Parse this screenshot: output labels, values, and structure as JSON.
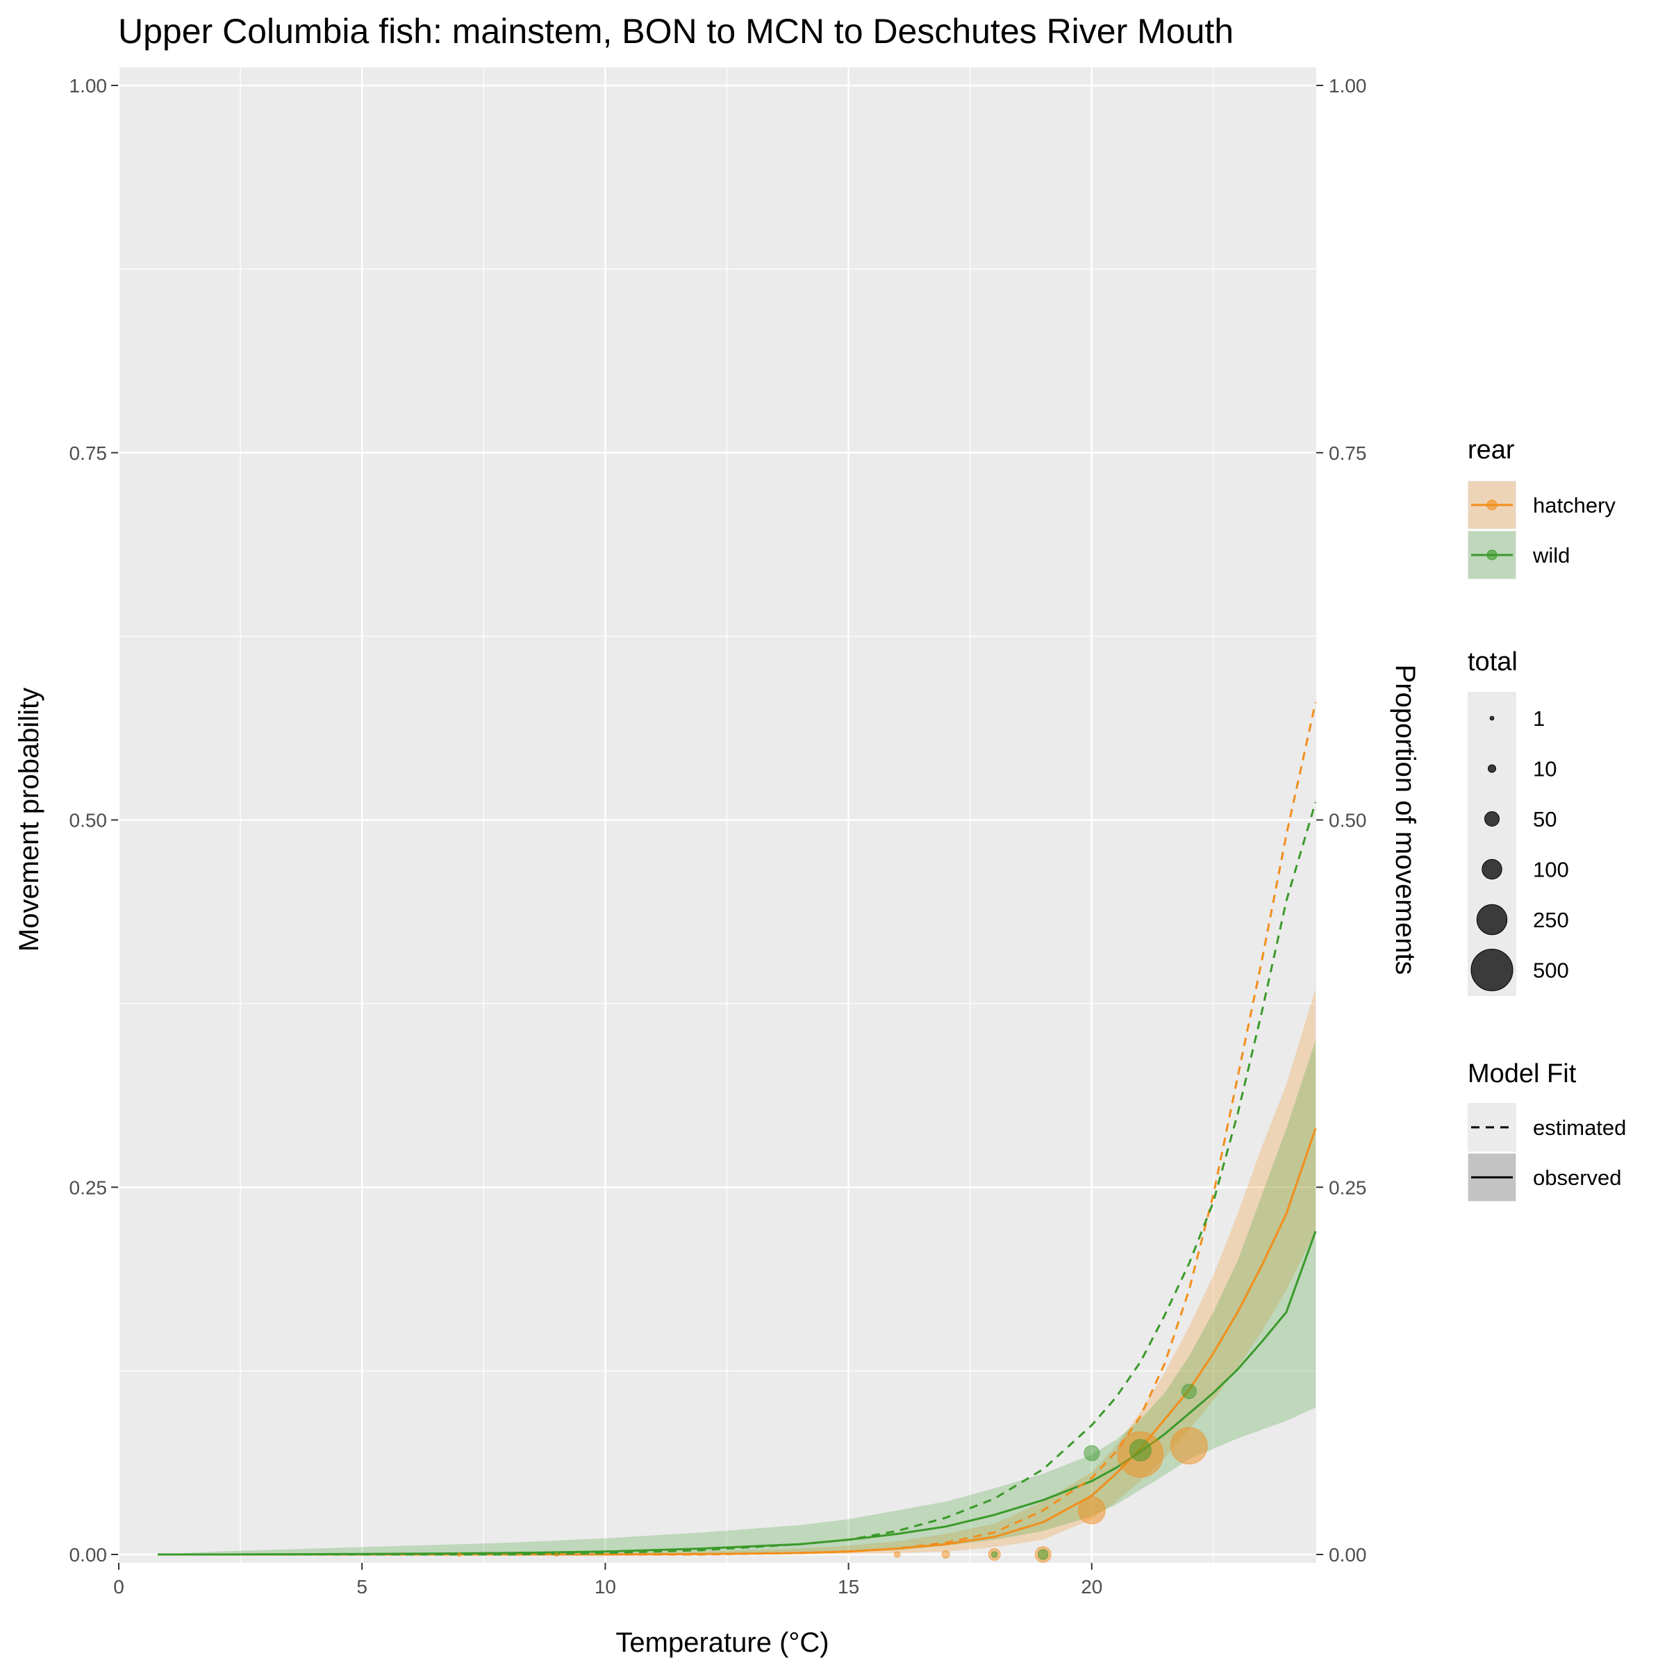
{
  "chart_data": {
    "type": "line",
    "title": "Upper Columbia fish: mainstem, BON to MCN to Deschutes River Mouth",
    "xlabel": "Temperature (°C)",
    "ylabel": "Movement probability",
    "ylabel_right": "Proportion of movements",
    "xlim": [
      0,
      24.6
    ],
    "ylim": [
      0,
      1
    ],
    "x_ticks": [
      0,
      5,
      10,
      15,
      20
    ],
    "x_tick_labels": [
      "0",
      "5",
      "10",
      "15",
      "20"
    ],
    "y_ticks": [
      0,
      0.25,
      0.5,
      0.75,
      1.0
    ],
    "y_tick_labels": [
      "0.00",
      "0.25",
      "0.50",
      "0.75",
      "1.00"
    ],
    "grid": true,
    "colors": {
      "hatchery": "#F28E1C",
      "wild": "#3A9A2A",
      "panel": "#EBEBEB",
      "grid": "#FFFFFF"
    },
    "x": [
      0.8,
      2,
      4,
      6,
      8,
      10,
      12,
      14,
      15,
      16,
      17,
      18,
      19,
      20,
      20.5,
      21,
      21.5,
      22,
      22.5,
      23,
      23.5,
      24,
      24.6
    ],
    "series": [
      {
        "name": "hatchery",
        "fit": "observed",
        "linetype": "solid",
        "values": [
          0,
          0,
          0,
          0,
          0,
          0,
          0.0003,
          0.001,
          0.002,
          0.004,
          0.007,
          0.012,
          0.022,
          0.04,
          0.055,
          0.072,
          0.092,
          0.112,
          0.137,
          0.165,
          0.197,
          0.232,
          0.29
        ],
        "lower": [
          0,
          0,
          0,
          0,
          0,
          0,
          0,
          0.0002,
          0.0005,
          0.001,
          0.002,
          0.005,
          0.01,
          0.024,
          0.036,
          0.05,
          0.066,
          0.085,
          0.105,
          0.127,
          0.152,
          0.18,
          0.22
        ],
        "upper": [
          0,
          0,
          0,
          0.0002,
          0.0005,
          0.001,
          0.002,
          0.004,
          0.006,
          0.009,
          0.014,
          0.021,
          0.036,
          0.056,
          0.074,
          0.097,
          0.124,
          0.155,
          0.19,
          0.232,
          0.278,
          0.32,
          0.385
        ]
      },
      {
        "name": "wild",
        "fit": "observed",
        "linetype": "solid",
        "values": [
          0,
          0,
          0.0002,
          0.0005,
          0.001,
          0.002,
          0.004,
          0.007,
          0.01,
          0.014,
          0.019,
          0.027,
          0.037,
          0.05,
          0.059,
          0.07,
          0.082,
          0.096,
          0.11,
          0.126,
          0.145,
          0.165,
          0.22
        ],
        "lower": [
          0,
          0,
          0,
          0,
          0,
          0,
          0,
          0.001,
          0.002,
          0.003,
          0.006,
          0.01,
          0.016,
          0.026,
          0.034,
          0.044,
          0.054,
          0.065,
          0.072,
          0.079,
          0.085,
          0.091,
          0.1
        ],
        "upper": [
          0,
          0.002,
          0.004,
          0.006,
          0.008,
          0.011,
          0.015,
          0.02,
          0.024,
          0.03,
          0.036,
          0.045,
          0.055,
          0.068,
          0.078,
          0.092,
          0.11,
          0.135,
          0.165,
          0.2,
          0.245,
          0.29,
          0.35
        ]
      },
      {
        "name": "hatchery",
        "fit": "estimated",
        "linetype": "dashed",
        "values": [
          0,
          0,
          0,
          0,
          0,
          0,
          0,
          0.001,
          0.002,
          0.004,
          0.008,
          0.015,
          0.03,
          0.052,
          0.07,
          0.094,
          0.13,
          0.18,
          0.245,
          0.325,
          0.405,
          0.49,
          0.58
        ]
      },
      {
        "name": "wild",
        "fit": "estimated",
        "linetype": "dashed",
        "values": [
          0,
          0,
          0,
          0,
          0,
          0.001,
          0.003,
          0.007,
          0.01,
          0.016,
          0.025,
          0.038,
          0.058,
          0.088,
          0.107,
          0.131,
          0.163,
          0.198,
          0.24,
          0.3,
          0.37,
          0.445,
          0.512
        ]
      }
    ],
    "points": [
      {
        "rear": "hatchery",
        "x": 7,
        "y": 0,
        "total": 1
      },
      {
        "rear": "hatchery",
        "x": 9,
        "y": 0,
        "total": 1
      },
      {
        "rear": "hatchery",
        "x": 16,
        "y": 0,
        "total": 5
      },
      {
        "rear": "hatchery",
        "x": 17,
        "y": 0,
        "total": 10
      },
      {
        "rear": "hatchery",
        "x": 18,
        "y": 0,
        "total": 30
      },
      {
        "rear": "hatchery",
        "x": 19,
        "y": 0,
        "total": 60
      },
      {
        "rear": "hatchery",
        "x": 20,
        "y": 0.03,
        "total": 200
      },
      {
        "rear": "hatchery",
        "x": 21,
        "y": 0.068,
        "total": 600
      },
      {
        "rear": "hatchery",
        "x": 22,
        "y": 0.074,
        "total": 380
      },
      {
        "rear": "wild",
        "x": 18,
        "y": 0,
        "total": 5
      },
      {
        "rear": "wild",
        "x": 19,
        "y": 0,
        "total": 20
      },
      {
        "rear": "wild",
        "x": 20,
        "y": 0.069,
        "total": 55
      },
      {
        "rear": "wild",
        "x": 21,
        "y": 0.071,
        "total": 120
      },
      {
        "rear": "wild",
        "x": 22,
        "y": 0.111,
        "total": 50
      }
    ],
    "size_range": [
      1,
      500
    ],
    "legend": {
      "position": "right",
      "rear_title": "rear",
      "rear_items": [
        "hatchery",
        "wild"
      ],
      "total_title": "total",
      "total_items": [
        {
          "label": "1",
          "value": 1
        },
        {
          "label": "10",
          "value": 10
        },
        {
          "label": "50",
          "value": 50
        },
        {
          "label": "100",
          "value": 100
        },
        {
          "label": "250",
          "value": 250
        },
        {
          "label": "500",
          "value": 500
        }
      ],
      "fit_title": "Model Fit",
      "fit_items": [
        {
          "label": "estimated",
          "linetype": "dashed"
        },
        {
          "label": "observed",
          "linetype": "solid"
        }
      ]
    }
  }
}
